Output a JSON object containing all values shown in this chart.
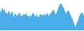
{
  "values": [
    60,
    45,
    70,
    50,
    65,
    40,
    55,
    45,
    60,
    42,
    50,
    58,
    44,
    38,
    52,
    46,
    40,
    48,
    55,
    42,
    46,
    38,
    50,
    44,
    52,
    40,
    46,
    38,
    44,
    42,
    48,
    54,
    44,
    40,
    48,
    42,
    38,
    44,
    50,
    46,
    42,
    50,
    44,
    48,
    52,
    46,
    44,
    50,
    54,
    58,
    64,
    55,
    48,
    52,
    60,
    70,
    80,
    85,
    78,
    72,
    65,
    55,
    50,
    58,
    62,
    55,
    45,
    38,
    30,
    20,
    10,
    5,
    15,
    25,
    35,
    45,
    52,
    55,
    48,
    42
  ],
  "line_color": "#4baee8",
  "fill_color": "#4baee8",
  "background_color": "#ffffff",
  "ylim_min": -5,
  "ylim_max": 100
}
